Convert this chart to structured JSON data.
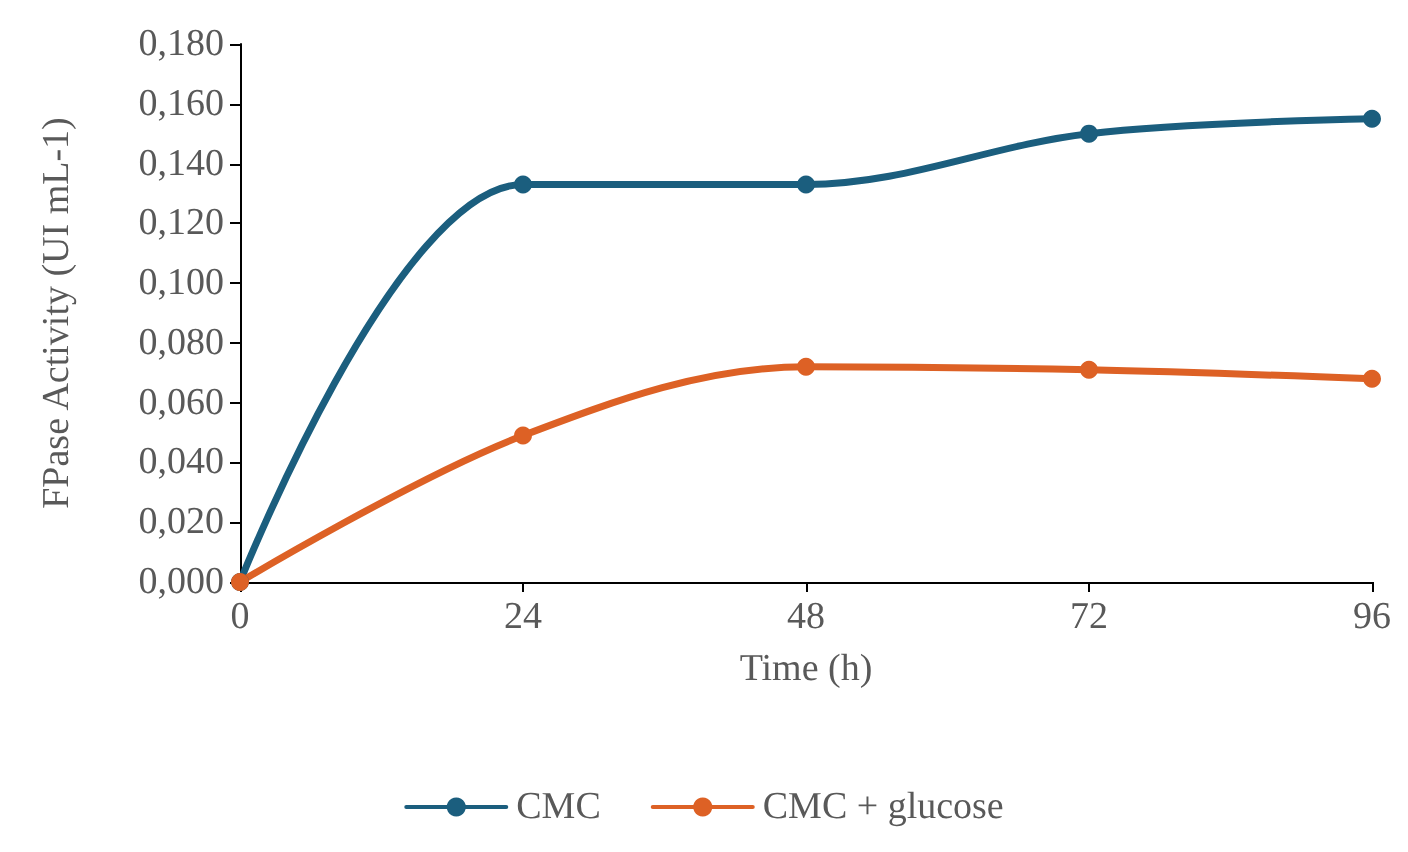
{
  "chart_data": {
    "type": "line",
    "xlabel": "Time (h)",
    "ylabel": "FPase Activity (UI mL-1)",
    "x": [
      0,
      24,
      48,
      72,
      96
    ],
    "series": [
      {
        "name": "CMC",
        "color": "#1b5e7e",
        "values": [
          0,
          0.133,
          0.133,
          0.15,
          0.155
        ]
      },
      {
        "name": "CMC + glucose",
        "color": "#dd6125",
        "values": [
          0,
          0.049,
          0.072,
          0.071,
          0.068
        ]
      }
    ],
    "xlim": [
      0,
      96
    ],
    "xticks": [
      0,
      24,
      48,
      72,
      96
    ],
    "ylim": [
      0,
      0.18
    ],
    "yticks": [
      {
        "value": 0,
        "label": "0,000"
      },
      {
        "value": 0.02,
        "label": "0,020"
      },
      {
        "value": 0.04,
        "label": "0,040"
      },
      {
        "value": 0.06,
        "label": "0,060"
      },
      {
        "value": 0.08,
        "label": "0,080"
      },
      {
        "value": 0.1,
        "label": "0,100"
      },
      {
        "value": 0.12,
        "label": "0,120"
      },
      {
        "value": 0.14,
        "label": "0,140"
      },
      {
        "value": 0.16,
        "label": "0,160"
      },
      {
        "value": 0.18,
        "label": "0,180"
      }
    ],
    "grid": false,
    "legend": "bottom",
    "marker": "circle",
    "line_style": "solid"
  }
}
